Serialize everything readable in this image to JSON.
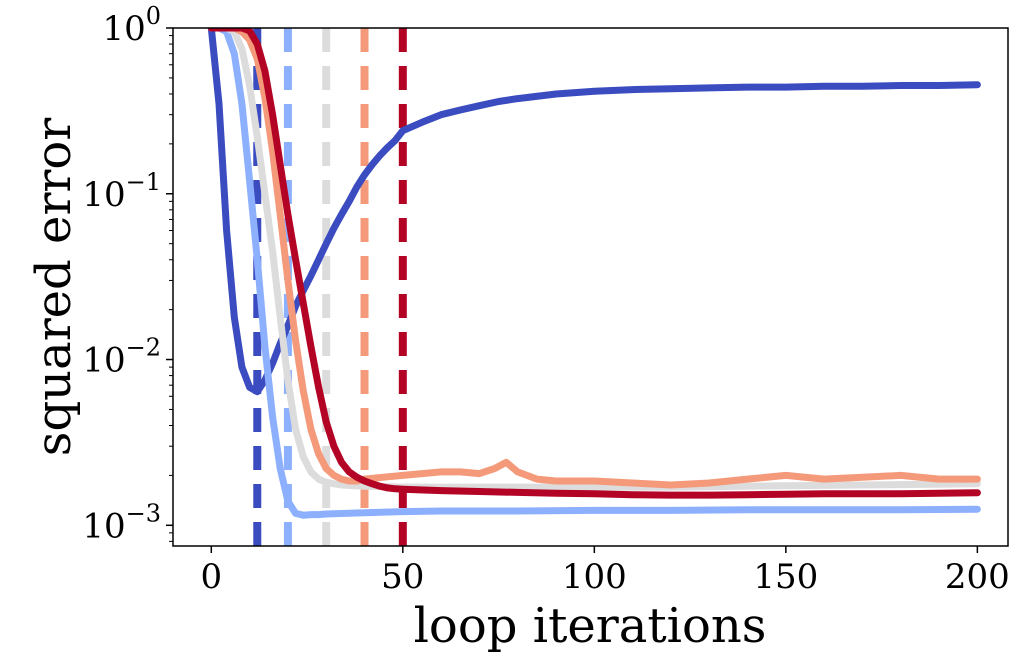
{
  "chart_data": {
    "type": "line",
    "title": "",
    "xlabel": "loop iterations",
    "ylabel": "squared error",
    "xlim": [
      -10,
      208
    ],
    "ylim": [
      0.00075,
      1.0
    ],
    "y_scale": "log",
    "grid": false,
    "legend": "none",
    "x_ticks": [
      0,
      50,
      100,
      150,
      200
    ],
    "x_tick_labels": [
      "0",
      "50",
      "100",
      "150",
      "200"
    ],
    "y_ticks": [
      {
        "value": 1.0,
        "base": "10",
        "exp": "0"
      },
      {
        "value": 0.1,
        "base": "10",
        "exp": "−1"
      },
      {
        "value": 0.01,
        "base": "10",
        "exp": "−2"
      },
      {
        "value": 0.001,
        "base": "10",
        "exp": "−3"
      }
    ],
    "series": [
      {
        "color": "#3b4cc0",
        "stop_iteration": 12,
        "x": [
          0,
          2,
          4,
          6,
          8,
          10,
          12,
          14,
          16,
          18,
          20,
          22,
          24,
          26,
          28,
          30,
          32,
          34,
          36,
          38,
          40,
          42,
          44,
          46,
          48,
          50,
          55,
          60,
          65,
          70,
          75,
          80,
          90,
          100,
          110,
          120,
          130,
          140,
          150,
          160,
          170,
          180,
          190,
          200
        ],
        "y": [
          1.0,
          0.35,
          0.06,
          0.018,
          0.009,
          0.0068,
          0.0064,
          0.0075,
          0.0095,
          0.0125,
          0.016,
          0.021,
          0.026,
          0.032,
          0.04,
          0.05,
          0.062,
          0.075,
          0.09,
          0.11,
          0.13,
          0.15,
          0.17,
          0.19,
          0.21,
          0.24,
          0.27,
          0.3,
          0.32,
          0.34,
          0.36,
          0.375,
          0.4,
          0.415,
          0.425,
          0.43,
          0.435,
          0.44,
          0.44,
          0.445,
          0.445,
          0.45,
          0.45,
          0.455
        ]
      },
      {
        "color": "#8db0fe",
        "stop_iteration": 20,
        "x": [
          0,
          2,
          4,
          6,
          8,
          10,
          12,
          14,
          16,
          18,
          20,
          22,
          24,
          26,
          28,
          30,
          40,
          50,
          60,
          80,
          100,
          120,
          140,
          160,
          180,
          200
        ],
        "y": [
          1.0,
          1.0,
          0.95,
          0.7,
          0.35,
          0.12,
          0.04,
          0.012,
          0.0045,
          0.0022,
          0.0014,
          0.00118,
          0.00115,
          0.00116,
          0.00116,
          0.00117,
          0.00119,
          0.00121,
          0.00122,
          0.00122,
          0.00123,
          0.00123,
          0.00124,
          0.00124,
          0.00124,
          0.00125
        ]
      },
      {
        "color": "#dddcdc",
        "stop_iteration": 30,
        "x": [
          0,
          2,
          4,
          6,
          8,
          10,
          12,
          14,
          16,
          18,
          20,
          22,
          24,
          26,
          28,
          30,
          32,
          34,
          36,
          40,
          50,
          60,
          80,
          100,
          120,
          140,
          160,
          180,
          200
        ],
        "y": [
          1.0,
          1.0,
          1.0,
          0.95,
          0.75,
          0.45,
          0.22,
          0.1,
          0.045,
          0.018,
          0.0075,
          0.0038,
          0.0026,
          0.0021,
          0.0019,
          0.00182,
          0.00178,
          0.00175,
          0.00174,
          0.00172,
          0.0017,
          0.0017,
          0.0017,
          0.0017,
          0.0017,
          0.00172,
          0.00174,
          0.00176,
          0.00178
        ]
      },
      {
        "color": "#f49a7b",
        "stop_iteration": 40,
        "x": [
          0,
          2,
          4,
          6,
          8,
          10,
          12,
          14,
          16,
          18,
          20,
          22,
          24,
          26,
          28,
          30,
          32,
          34,
          36,
          38,
          40,
          45,
          50,
          55,
          60,
          65,
          70,
          74,
          77,
          80,
          85,
          90,
          100,
          110,
          120,
          130,
          140,
          150,
          160,
          170,
          180,
          190,
          200
        ],
        "y": [
          1.0,
          1.0,
          1.0,
          1.0,
          0.95,
          0.85,
          0.65,
          0.38,
          0.18,
          0.075,
          0.03,
          0.013,
          0.0065,
          0.0038,
          0.0027,
          0.0022,
          0.002,
          0.0019,
          0.00185,
          0.00185,
          0.0019,
          0.00195,
          0.002,
          0.00205,
          0.0021,
          0.0021,
          0.00205,
          0.0022,
          0.0024,
          0.0021,
          0.0019,
          0.00185,
          0.00185,
          0.0018,
          0.00175,
          0.0018,
          0.0019,
          0.002,
          0.0019,
          0.00195,
          0.002,
          0.0019,
          0.0019
        ]
      },
      {
        "color": "#b40426",
        "stop_iteration": 50,
        "x": [
          0,
          2,
          4,
          6,
          8,
          10,
          12,
          14,
          16,
          18,
          20,
          22,
          24,
          26,
          28,
          30,
          32,
          34,
          36,
          38,
          40,
          42,
          44,
          46,
          48,
          50,
          60,
          70,
          80,
          90,
          100,
          110,
          120,
          130,
          140,
          150,
          160,
          170,
          180,
          190,
          200
        ],
        "y": [
          1.0,
          1.0,
          1.0,
          1.0,
          1.0,
          0.96,
          0.8,
          0.55,
          0.3,
          0.15,
          0.075,
          0.04,
          0.022,
          0.012,
          0.0068,
          0.0042,
          0.003,
          0.0024,
          0.0021,
          0.00195,
          0.00185,
          0.00178,
          0.00172,
          0.00168,
          0.00166,
          0.00165,
          0.00162,
          0.0016,
          0.00158,
          0.00156,
          0.00155,
          0.00153,
          0.00152,
          0.00152,
          0.00153,
          0.00154,
          0.00155,
          0.00155,
          0.00155,
          0.00156,
          0.00157
        ]
      }
    ]
  }
}
